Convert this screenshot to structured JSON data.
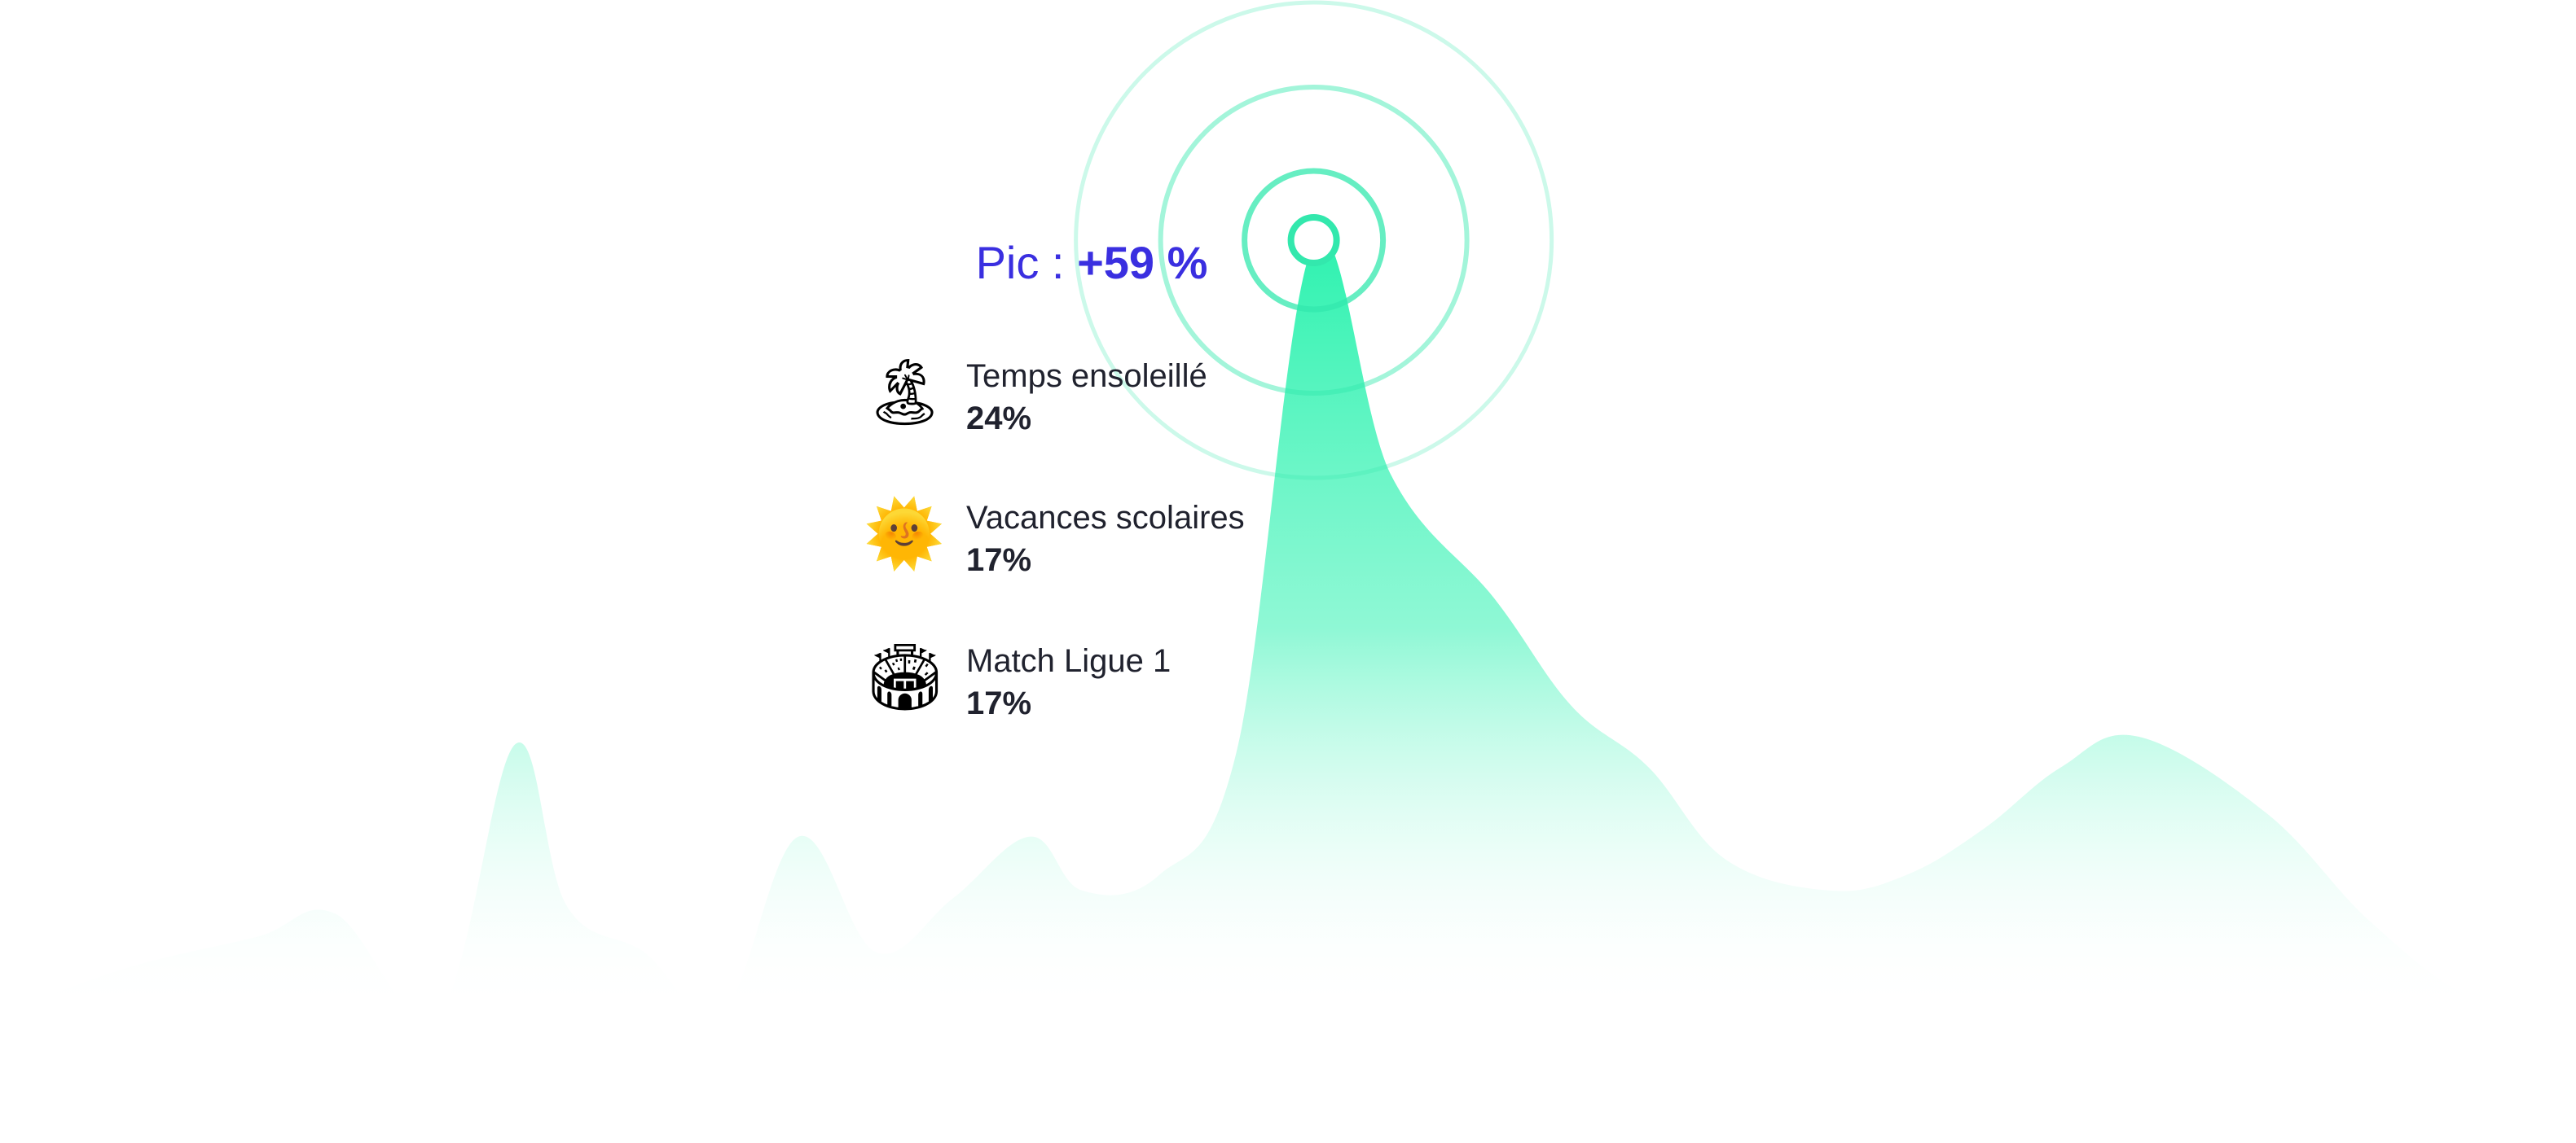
{
  "peak": {
    "label": "Pic :",
    "value": "+59 %"
  },
  "factors": [
    {
      "icon": "desert-island-icon",
      "glyph": "🏝",
      "name": "Temps ensoleillé",
      "percent": "24%"
    },
    {
      "icon": "sun-with-face-icon",
      "glyph": "🌞",
      "name": "Vacances scolaires",
      "percent": "17%"
    },
    {
      "icon": "stadium-icon",
      "glyph": "🏟",
      "name": "Match Ligue 1",
      "percent": "17%"
    }
  ],
  "colors": {
    "accent": "#3a2fe0",
    "area": "#2ff2b0",
    "ring": "#33e8ad",
    "text": "#20222e"
  },
  "chart_data": {
    "type": "area",
    "title": "",
    "xlabel": "",
    "ylabel": "",
    "grid": false,
    "legend": "none",
    "x": [
      0,
      0.05,
      0.1,
      0.13,
      0.17,
      0.2,
      0.22,
      0.25,
      0.28,
      0.31,
      0.34,
      0.37,
      0.4,
      0.42,
      0.45,
      0.48,
      0.51,
      0.54,
      0.58,
      0.61,
      0.64,
      0.67,
      0.71,
      0.74,
      0.77,
      0.8,
      0.83,
      0.88,
      0.92,
      0.96,
      1.0
    ],
    "values": [
      0,
      0.06,
      0.1,
      0.13,
      0.0,
      0.35,
      0.14,
      0.08,
      0.0,
      0.23,
      0.08,
      0.15,
      0.23,
      0.16,
      0.18,
      0.34,
      1.0,
      0.7,
      0.54,
      0.4,
      0.32,
      0.2,
      0.16,
      0.18,
      0.24,
      0.32,
      0.36,
      0.26,
      0.12,
      0.02,
      0.0
    ],
    "peak_index": 16
  }
}
